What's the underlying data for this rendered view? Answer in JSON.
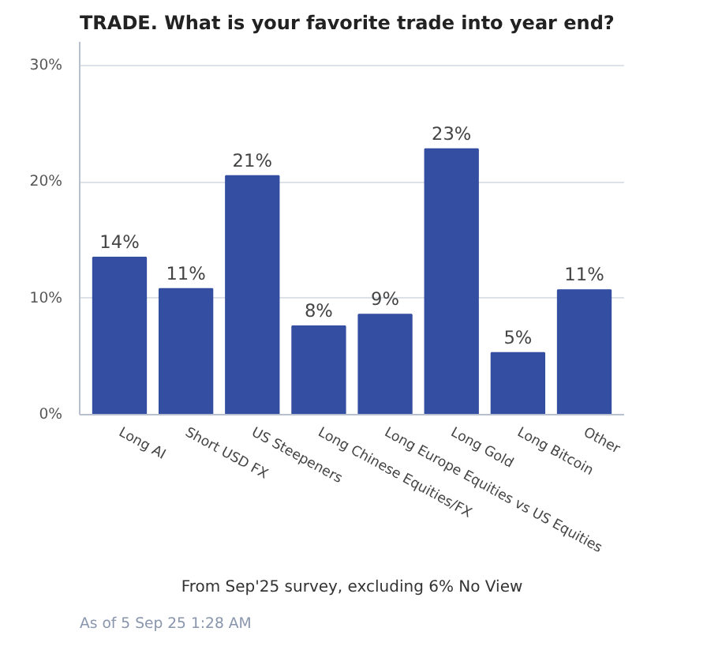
{
  "chart_data": {
    "type": "bar",
    "title": "TRADE. What is your favorite trade into year end?",
    "categories": [
      "Long AI",
      "Short USD FX",
      "US Steepeners",
      "Long Chinese Equities/FX",
      "Long Europe Equities vs US Equities",
      "Long Gold",
      "Long Bitcoin",
      "Other"
    ],
    "values": [
      13.5,
      10.8,
      20.5,
      7.6,
      8.6,
      22.8,
      5.3,
      10.7
    ],
    "value_labels": [
      "14%",
      "11%",
      "21%",
      "8%",
      "9%",
      "23%",
      "5%",
      "11%"
    ],
    "color": "#344ea1",
    "ylim": [
      0,
      32
    ],
    "yticks": [
      {
        "value": 0,
        "label": "0%"
      },
      {
        "value": 10,
        "label": "10%"
      },
      {
        "value": 20,
        "label": "20%"
      },
      {
        "value": 30,
        "label": "30%"
      }
    ],
    "grid": "y",
    "annotations": [
      "From Sep'25 survey, excluding 6% No View",
      "As of 5 Sep 25 1:28 AM"
    ]
  }
}
